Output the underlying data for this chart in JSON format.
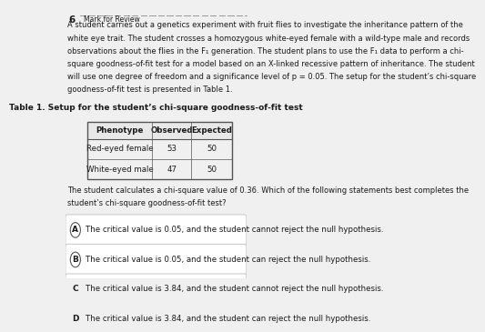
{
  "question_number": "6",
  "paragraph": "A student carries out a genetics experiment with fruit flies to investigate the inheritance pattern of the white eye trait. The student crosses a homozygous white-eyed female with a wild-type male and records observations about the flies in the F₁ generation. The student plans to use the F₁ data to perform a chi-square goodness-of-fit test for a model based on an X-linked recessive pattern of inheritance. The student will use one degree of freedom and a significance level of p = 0.05. The setup for the student’s chi-square goodness-of-fit test is presented in Table 1.",
  "table_title": "Table 1. Setup for the student’s chi-square goodness-of-fit test",
  "table_headers": [
    "Phenotype",
    "Observed",
    "Expected"
  ],
  "table_rows": [
    [
      "Red-eyed female",
      "53",
      "50"
    ],
    [
      "White-eyed male",
      "47",
      "50"
    ]
  ],
  "between_text": "The student calculates a chi-square value of 0.36. Which of the following statements best completes the student’s chi-square goodness-of-fit test?",
  "options": [
    {
      "label": "A",
      "text": "The critical value is 0.05, and the student cannot reject the null hypothesis."
    },
    {
      "label": "B",
      "text": "The critical value is 0.05, and the student can reject the null hypothesis."
    },
    {
      "label": "C",
      "text": "The critical value is 3.84, and the student cannot reject the null hypothesis."
    },
    {
      "label": "D",
      "text": "The critical value is 3.84, and the student can reject the null hypothesis."
    }
  ],
  "bg_color": "#f0f0f0",
  "option_box_color": "#ffffff",
  "option_border_color": "#cccccc",
  "text_color": "#1a1a1a",
  "table_border_color": "#555555",
  "header_bg": "#e8e8e8",
  "font_size_para": 6.0,
  "font_size_table": 6.2,
  "font_size_option": 6.2,
  "font_size_table_title": 6.5
}
